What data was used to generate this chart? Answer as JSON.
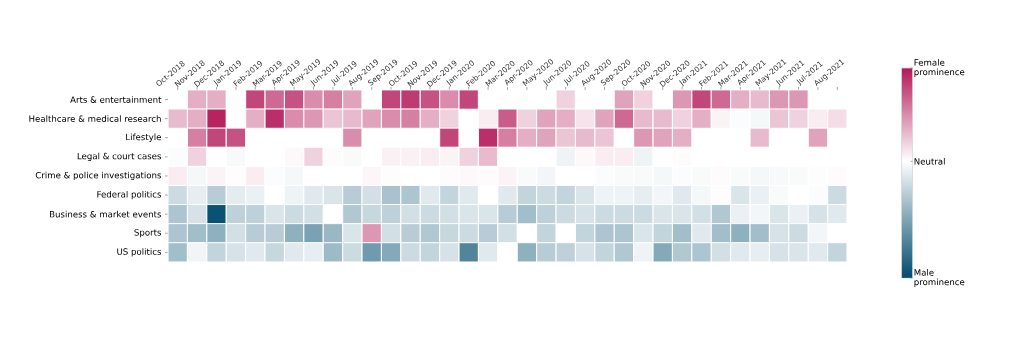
{
  "chart_data": {
    "type": "heatmap",
    "categories": [
      "Oct-2018",
      "Nov-2018",
      "Dec-2018",
      "Jan-2019",
      "Feb-2019",
      "Mar-2019",
      "Apr-2019",
      "May-2019",
      "Jun-2019",
      "Jul-2019",
      "Aug-2019",
      "Sep-2019",
      "Oct-2019",
      "Nov-2019",
      "Dec-2019",
      "Jan-2020",
      "Feb-2020",
      "Mar-2020",
      "Apr-2020",
      "May-2020",
      "Jun-2020",
      "Jul-2020",
      "Aug-2020",
      "Sep-2020",
      "Oct-2020",
      "Nov-2020",
      "Dec-2020",
      "Jan-2021",
      "Feb-2021",
      "Mar-2021",
      "Apr-2021",
      "May-2021",
      "Jun-2021",
      "Jul-2021",
      "Aug-2021"
    ],
    "y_categories": [
      "Arts & entertainment",
      "Healthcare & medical research",
      "Lifestyle",
      "Legal & court cases",
      "Crime & police investigations",
      "Federal politics",
      "Business & market events",
      "Sports",
      "US politics"
    ],
    "cells": [
      [
        null,
        0.35,
        0.35,
        null,
        0.8,
        0.65,
        0.75,
        0.5,
        0.55,
        0.4,
        null,
        0.8,
        0.85,
        0.75,
        0.5,
        0.8,
        null,
        null,
        null,
        null,
        0.2,
        null,
        null,
        0.4,
        0.2,
        null,
        0.45,
        0.8,
        0.65,
        0.35,
        0.3,
        0.45,
        0.45,
        null,
        null
      ],
      [
        0.3,
        0.35,
        0.95,
        null,
        0.35,
        0.9,
        0.5,
        0.45,
        0.25,
        0.3,
        0.4,
        0.5,
        0.55,
        0.35,
        0.2,
        null,
        0.08,
        0.7,
        0.2,
        0.4,
        0.35,
        0.12,
        0.4,
        0.65,
        0.3,
        0.3,
        0.2,
        0.35,
        0.05,
        -0.02,
        -0.05,
        0.25,
        0.2,
        0.08,
        0.15
      ],
      [
        null,
        0.55,
        0.8,
        0.75,
        null,
        null,
        null,
        null,
        null,
        0.5,
        null,
        null,
        null,
        null,
        0.8,
        null,
        0.9,
        0.55,
        0.35,
        0.4,
        0.25,
        0.3,
        0.25,
        null,
        0.45,
        0.4,
        0.35,
        null,
        null,
        null,
        0.3,
        null,
        null,
        0.4,
        null
      ],
      [
        -0.02,
        0.2,
        0,
        -0.04,
        0,
        0,
        0.03,
        0.2,
        0.02,
        -0.03,
        0,
        0.06,
        0.06,
        0.08,
        0.05,
        0.2,
        0.3,
        0,
        0,
        0,
        -0.08,
        0.03,
        0.08,
        0.08,
        -0.08,
        0,
        0.02,
        0,
        0,
        0,
        0,
        0,
        0,
        0,
        0
      ],
      [
        0.08,
        -0.05,
        0.05,
        0.01,
        0.08,
        -0.02,
        -0.05,
        0,
        0,
        0,
        0.04,
        0.01,
        0,
        0,
        0.02,
        0.03,
        0.02,
        0.05,
        -0.03,
        -0.06,
        0,
        0,
        -0.02,
        -0.03,
        -0.03,
        -0.05,
        -0.02,
        -0.03,
        0.02,
        -0.03,
        -0.05,
        -0.04,
        -0.03,
        0.01,
        0.02
      ],
      [
        -0.25,
        -0.12,
        -0.35,
        -0.13,
        -0.1,
        0,
        -0.08,
        -0.15,
        -0.18,
        -0.35,
        -0.22,
        -0.42,
        -0.4,
        -0.15,
        -0.3,
        -0.15,
        0,
        -0.15,
        -0.3,
        -0.25,
        -0.3,
        -0.18,
        -0.08,
        -0.08,
        -0.12,
        -0.06,
        -0.15,
        -0.05,
        0.01,
        -0.18,
        -0.1,
        -0.03,
        0,
        -0.02,
        -0.25
      ],
      [
        -0.4,
        -0.2,
        -1.2,
        -0.32,
        -0.32,
        -0.18,
        -0.25,
        -0.22,
        null,
        -0.38,
        -0.28,
        -0.32,
        -0.22,
        -0.25,
        -0.22,
        -0.18,
        -0.18,
        -0.35,
        -0.45,
        -0.32,
        -0.25,
        -0.2,
        -0.25,
        -0.25,
        -0.25,
        -0.18,
        -0.18,
        -0.22,
        -0.38,
        -0.1,
        -0.06,
        -0.18,
        -0.1,
        -0.2,
        -0.15
      ],
      [
        -0.4,
        -0.45,
        -0.55,
        -0.22,
        -0.35,
        -0.35,
        -0.55,
        -0.65,
        -0.5,
        -0.18,
        0.45,
        -0.22,
        -0.35,
        -0.38,
        -0.28,
        -0.25,
        -0.35,
        -0.22,
        null,
        -0.3,
        null,
        -0.3,
        -0.4,
        -0.4,
        -0.18,
        -0.3,
        -0.45,
        -0.15,
        -0.45,
        -0.55,
        -0.45,
        -0.2,
        -0.25,
        -0.06,
        0
      ],
      [
        -0.45,
        -0.07,
        -0.3,
        -0.2,
        -0.15,
        -0.28,
        -0.15,
        -0.12,
        -0.48,
        -0.25,
        -0.7,
        -0.6,
        -0.25,
        -0.3,
        -0.2,
        -0.85,
        -0.15,
        0,
        -0.55,
        -0.35,
        -0.32,
        -0.2,
        -0.3,
        -0.38,
        -0.08,
        -0.6,
        -0.38,
        -0.4,
        -0.22,
        -0.15,
        -0.12,
        -0.2,
        -0.18,
        -0.15,
        -0.3
      ]
    ],
    "clim": [
      -1.25,
      1
    ],
    "cticks": [
      {
        "value": 1,
        "label": "Female prominence"
      },
      {
        "value": 0,
        "label": "Neutral"
      },
      {
        "value": -1.25,
        "label": "Male prominence"
      }
    ]
  }
}
